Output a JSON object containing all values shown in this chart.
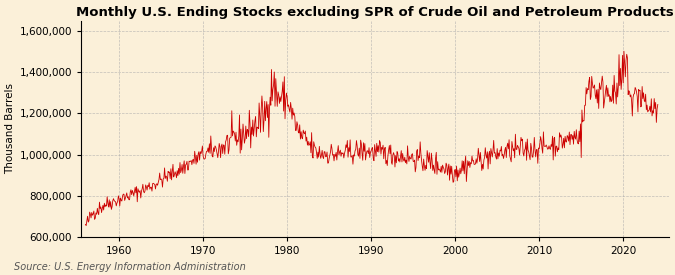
{
  "title": "Monthly U.S. Ending Stocks excluding SPR of Crude Oil and Petroleum Products",
  "ylabel": "Thousand Barrels",
  "source": "Source: U.S. Energy Information Administration",
  "background_color": "#FBF0D9",
  "line_color": "#CC0000",
  "grid_color": "#AAAAAA",
  "xlim": [
    1955.5,
    2025.5
  ],
  "ylim": [
    600000,
    1650000
  ],
  "yticks": [
    600000,
    800000,
    1000000,
    1200000,
    1400000,
    1600000
  ],
  "xticks": [
    1960,
    1970,
    1980,
    1990,
    2000,
    2010,
    2020
  ],
  "title_fontsize": 9.5,
  "ylabel_fontsize": 7.5,
  "source_fontsize": 7,
  "tick_fontsize": 7.5
}
